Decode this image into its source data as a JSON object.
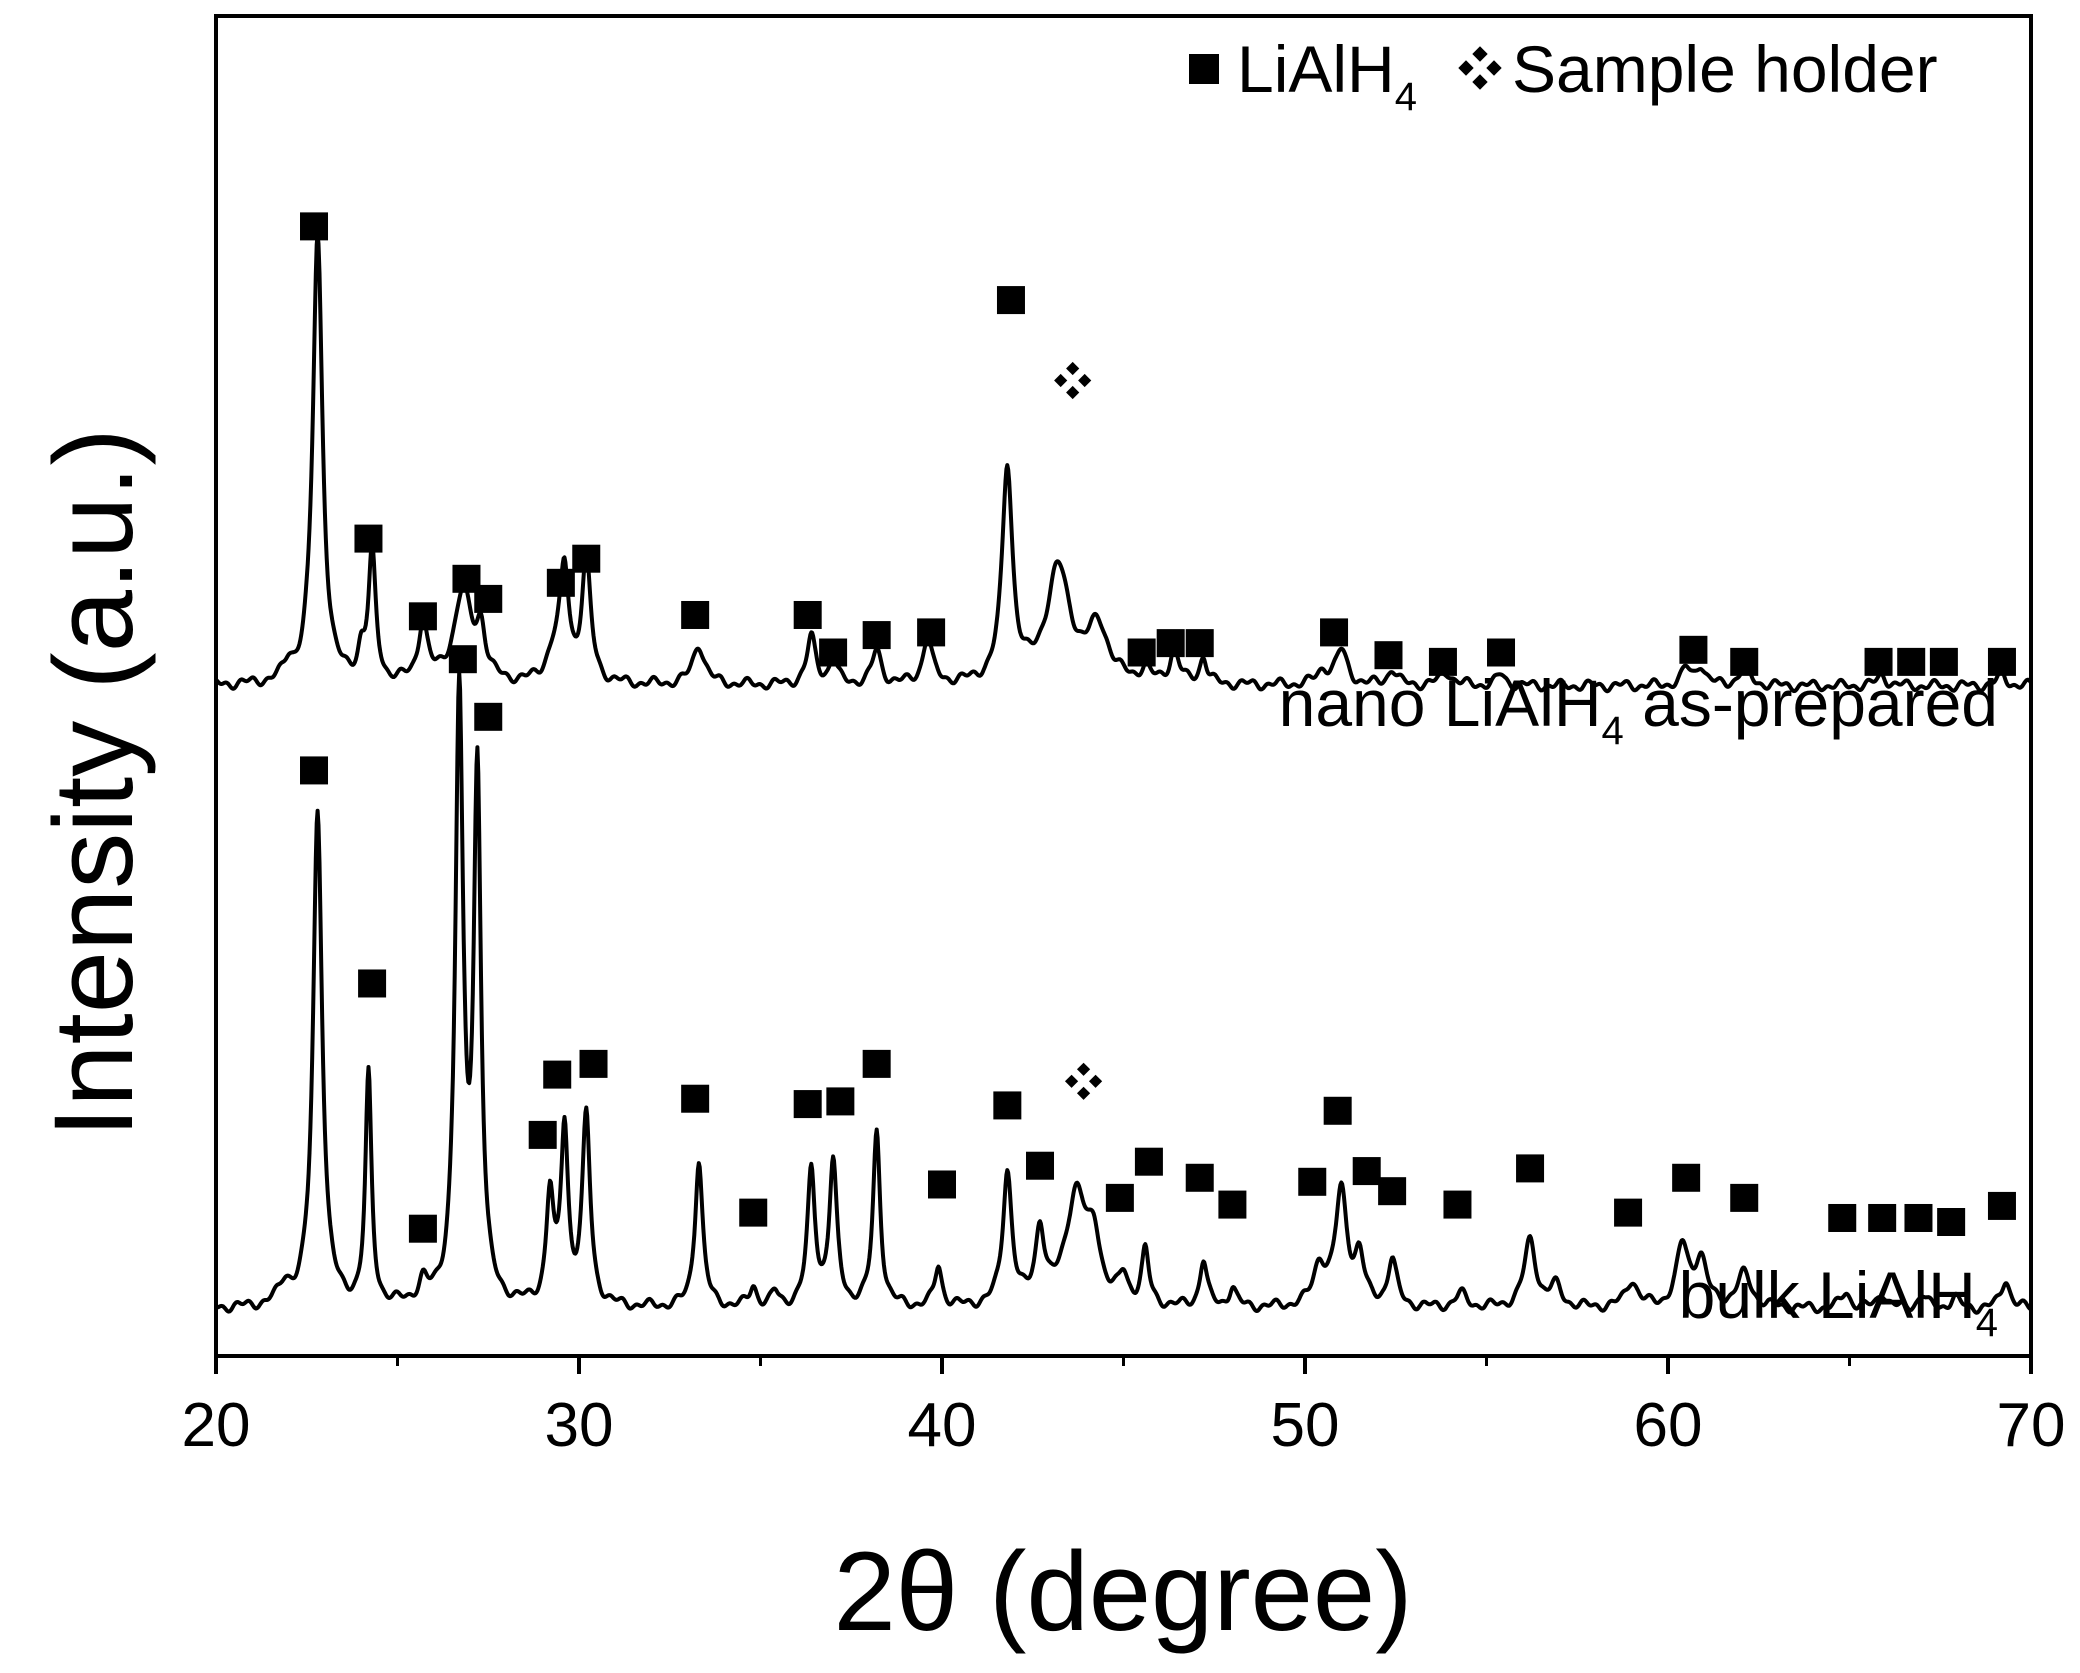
{
  "chart_data": {
    "type": "line",
    "xlabel": "2θ (degree)",
    "ylabel": "Intensity (a.u.)",
    "xlim": [
      20,
      70
    ],
    "xticks": [
      20,
      30,
      40,
      50,
      60,
      70
    ],
    "y_ticks_shown": false,
    "grid": false,
    "legend": {
      "placement": "top-right",
      "entries": [
        {
          "marker": "filled-square",
          "label": "LiAlH",
          "subscript": "4"
        },
        {
          "marker": "four-diamond",
          "label": "Sample holder",
          "subscript": ""
        }
      ]
    },
    "series": [
      {
        "label": "nano LiAlH",
        "label_subscript": "4",
        "label_suffix": " as-prepared",
        "baseline": 0.5,
        "peaks": [
          [
            22.0,
            0.012,
            0.15
          ],
          [
            22.8,
            0.335,
            0.16
          ],
          [
            24.0,
            0.02,
            0.12
          ],
          [
            24.3,
            0.095,
            0.12
          ],
          [
            25.7,
            0.045,
            0.15
          ],
          [
            26.8,
            0.068,
            0.3
          ],
          [
            27.3,
            0.035,
            0.15
          ],
          [
            29.3,
            0.02,
            0.25
          ],
          [
            29.6,
            0.08,
            0.15
          ],
          [
            30.2,
            0.09,
            0.15
          ],
          [
            33.3,
            0.03,
            0.2
          ],
          [
            36.4,
            0.035,
            0.15
          ],
          [
            37.0,
            0.02,
            0.12
          ],
          [
            38.2,
            0.025,
            0.15
          ],
          [
            39.6,
            0.035,
            0.15
          ],
          [
            41.8,
            0.16,
            0.17
          ],
          [
            43.2,
            0.085,
            0.4
          ],
          [
            44.3,
            0.04,
            0.35
          ],
          [
            45.6,
            0.01,
            0.15
          ],
          [
            46.4,
            0.025,
            0.15
          ],
          [
            47.2,
            0.02,
            0.12
          ],
          [
            50.5,
            0.01,
            0.2
          ],
          [
            51.0,
            0.025,
            0.2
          ],
          [
            52.4,
            0.012,
            0.15
          ],
          [
            53.9,
            0.01,
            0.2
          ],
          [
            55.4,
            0.008,
            0.15
          ],
          [
            60.5,
            0.012,
            0.15
          ],
          [
            60.9,
            0.015,
            0.15
          ],
          [
            62.1,
            0.012,
            0.2
          ],
          [
            65.9,
            0.008,
            0.15
          ],
          [
            69.2,
            0.008,
            0.15
          ]
        ],
        "lialh4_markers": [
          [
            22.7,
            0.843
          ],
          [
            24.2,
            0.61
          ],
          [
            25.7,
            0.552
          ],
          [
            26.9,
            0.58
          ],
          [
            27.5,
            0.565
          ],
          [
            29.5,
            0.577
          ],
          [
            30.2,
            0.595
          ],
          [
            33.2,
            0.553
          ],
          [
            36.3,
            0.553
          ],
          [
            37.0,
            0.525
          ],
          [
            38.2,
            0.538
          ],
          [
            39.7,
            0.54
          ],
          [
            41.9,
            0.788
          ],
          [
            45.5,
            0.525
          ],
          [
            46.3,
            0.532
          ],
          [
            47.1,
            0.532
          ],
          [
            50.8,
            0.54
          ],
          [
            52.3,
            0.523
          ],
          [
            53.8,
            0.518
          ],
          [
            55.4,
            0.525
          ],
          [
            60.7,
            0.527
          ],
          [
            62.1,
            0.518
          ],
          [
            65.8,
            0.518
          ],
          [
            66.7,
            0.518
          ],
          [
            67.6,
            0.518
          ],
          [
            69.2,
            0.518
          ]
        ],
        "holder_markers": [
          [
            43.6,
            0.728
          ]
        ]
      },
      {
        "label": "bulk LiAlH",
        "label_subscript": "4",
        "label_suffix": "",
        "baseline": 0.035,
        "peaks": [
          [
            21.9,
            0.015,
            0.2
          ],
          [
            22.8,
            0.37,
            0.15
          ],
          [
            24.2,
            0.17,
            0.1
          ],
          [
            25.7,
            0.015,
            0.15
          ],
          [
            26.7,
            0.45,
            0.13
          ],
          [
            27.2,
            0.39,
            0.12
          ],
          [
            29.2,
            0.08,
            0.12
          ],
          [
            29.6,
            0.13,
            0.12
          ],
          [
            30.2,
            0.14,
            0.13
          ],
          [
            33.3,
            0.11,
            0.13
          ],
          [
            34.8,
            0.015,
            0.12
          ],
          [
            35.4,
            0.01,
            0.12
          ],
          [
            36.4,
            0.1,
            0.13
          ],
          [
            37.0,
            0.105,
            0.13
          ],
          [
            38.2,
            0.13,
            0.12
          ],
          [
            39.9,
            0.03,
            0.12
          ],
          [
            41.8,
            0.1,
            0.15
          ],
          [
            42.7,
            0.055,
            0.15
          ],
          [
            43.7,
            0.085,
            0.35
          ],
          [
            44.2,
            0.04,
            0.2
          ],
          [
            45.0,
            0.02,
            0.15
          ],
          [
            45.6,
            0.04,
            0.12
          ],
          [
            47.2,
            0.035,
            0.12
          ],
          [
            48.0,
            0.015,
            0.12
          ],
          [
            50.4,
            0.03,
            0.2
          ],
          [
            51.0,
            0.085,
            0.2
          ],
          [
            51.5,
            0.035,
            0.15
          ],
          [
            52.4,
            0.035,
            0.15
          ],
          [
            54.3,
            0.01,
            0.2
          ],
          [
            56.2,
            0.05,
            0.2
          ],
          [
            56.9,
            0.015,
            0.2
          ],
          [
            59.0,
            0.02,
            0.2
          ],
          [
            60.4,
            0.045,
            0.2
          ],
          [
            60.9,
            0.035,
            0.2
          ],
          [
            62.1,
            0.025,
            0.25
          ],
          [
            64.9,
            0.012,
            0.15
          ],
          [
            65.9,
            0.012,
            0.15
          ],
          [
            67.0,
            0.01,
            0.15
          ],
          [
            67.9,
            0.008,
            0.15
          ],
          [
            69.3,
            0.022,
            0.15
          ]
        ],
        "lialh4_markers": [
          [
            22.7,
            0.437
          ],
          [
            24.3,
            0.278
          ],
          [
            25.7,
            0.095
          ],
          [
            26.8,
            0.52
          ],
          [
            27.5,
            0.477
          ],
          [
            29.0,
            0.165
          ],
          [
            29.4,
            0.21
          ],
          [
            30.4,
            0.218
          ],
          [
            33.2,
            0.192
          ],
          [
            34.8,
            0.107
          ],
          [
            36.3,
            0.188
          ],
          [
            37.2,
            0.19
          ],
          [
            38.2,
            0.218
          ],
          [
            40.0,
            0.128
          ],
          [
            41.8,
            0.187
          ],
          [
            42.7,
            0.142
          ],
          [
            44.9,
            0.118
          ],
          [
            45.7,
            0.145
          ],
          [
            47.1,
            0.133
          ],
          [
            48.0,
            0.113
          ],
          [
            50.2,
            0.13
          ],
          [
            50.9,
            0.183
          ],
          [
            51.7,
            0.138
          ],
          [
            52.4,
            0.123
          ],
          [
            54.2,
            0.113
          ],
          [
            56.2,
            0.14
          ],
          [
            58.9,
            0.107
          ],
          [
            60.5,
            0.133
          ],
          [
            62.1,
            0.118
          ],
          [
            64.8,
            0.103
          ],
          [
            65.9,
            0.103
          ],
          [
            66.9,
            0.103
          ],
          [
            67.8,
            0.1
          ],
          [
            69.2,
            0.112
          ]
        ],
        "holder_markers": [
          [
            43.9,
            0.205
          ]
        ]
      }
    ]
  }
}
